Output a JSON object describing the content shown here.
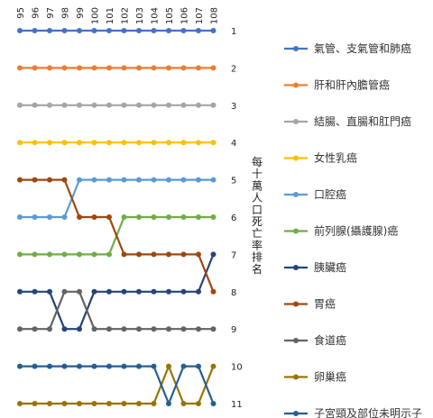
{
  "chart_data": {
    "type": "line",
    "ylabel": "每十萬人口死亡率排名",
    "x": [
      "95",
      "96",
      "97",
      "98",
      "99",
      "100",
      "101",
      "102",
      "103",
      "104",
      "105",
      "106",
      "107",
      "108"
    ],
    "y_ticks": [
      "1",
      "2",
      "3",
      "4",
      "5",
      "6",
      "7",
      "8",
      "9",
      "10",
      "11"
    ],
    "ylim": [
      1,
      11
    ],
    "y_inverted": true,
    "grid": false,
    "legend_position": "right",
    "series": [
      {
        "name": "氣管、支氣管和肺癌",
        "color": "#4472C4",
        "values": [
          1,
          1,
          1,
          1,
          1,
          1,
          1,
          1,
          1,
          1,
          1,
          1,
          1,
          1
        ]
      },
      {
        "name": "肝和肝內膽管癌",
        "color": "#ED7D31",
        "values": [
          2,
          2,
          2,
          2,
          2,
          2,
          2,
          2,
          2,
          2,
          2,
          2,
          2,
          2
        ]
      },
      {
        "name": "結腸、直腸和肛門癌",
        "color": "#A5A5A5",
        "values": [
          3,
          3,
          3,
          3,
          3,
          3,
          3,
          3,
          3,
          3,
          3,
          3,
          3,
          3
        ]
      },
      {
        "name": "女性乳癌",
        "color": "#FFC000",
        "values": [
          4,
          4,
          4,
          4,
          4,
          4,
          4,
          4,
          4,
          4,
          4,
          4,
          4,
          4
        ]
      },
      {
        "name": "口腔癌",
        "color": "#5B9BD5",
        "values": [
          6,
          6,
          6,
          6,
          5,
          5,
          5,
          5,
          5,
          5,
          5,
          5,
          5,
          5
        ]
      },
      {
        "name": "前列腺(攝護腺)癌",
        "color": "#70AD47",
        "values": [
          7,
          7,
          7,
          7,
          7,
          7,
          7,
          6,
          6,
          6,
          6,
          6,
          6,
          6
        ]
      },
      {
        "name": "胰臟癌",
        "color": "#264478",
        "values": [
          8,
          8,
          8,
          9,
          9,
          8,
          8,
          8,
          8,
          8,
          8,
          8,
          8,
          7
        ]
      },
      {
        "name": "胃癌",
        "color": "#9E480E",
        "values": [
          5,
          5,
          5,
          5,
          6,
          6,
          6,
          7,
          7,
          7,
          7,
          7,
          7,
          8
        ]
      },
      {
        "name": "食道癌",
        "color": "#636363",
        "values": [
          9,
          9,
          9,
          8,
          8,
          9,
          9,
          9,
          9,
          9,
          9,
          9,
          9,
          9
        ]
      },
      {
        "name": "卵巢癌",
        "color": "#997300",
        "values": [
          11,
          11,
          11,
          11,
          11,
          11,
          11,
          11,
          11,
          11,
          10,
          11,
          11,
          10
        ]
      },
      {
        "name": "子宮頸及部位未明示子宮癌",
        "color": "#255E91",
        "values": [
          10,
          10,
          10,
          10,
          10,
          10,
          10,
          10,
          10,
          10,
          11,
          10,
          10,
          11
        ]
      }
    ]
  }
}
